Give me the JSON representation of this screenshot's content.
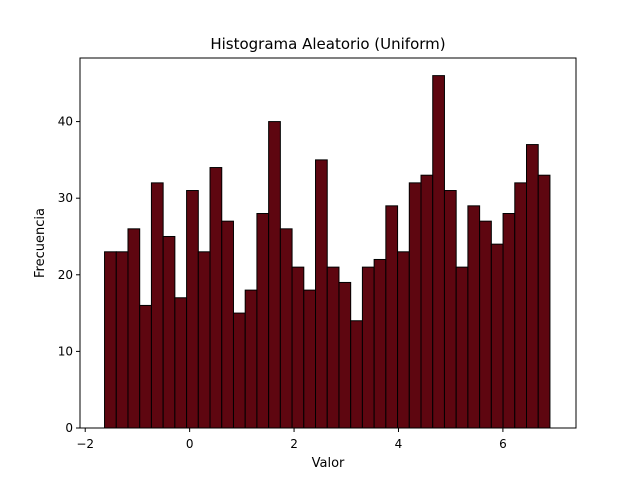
{
  "chart_data": {
    "type": "bar",
    "subtype": "histogram",
    "title": "Histograma Aleatorio (Uniform)",
    "xlabel": "Valor",
    "ylabel": "Frecuencia",
    "xlim": [
      -2.1,
      7.4
    ],
    "ylim": [
      0,
      48.3
    ],
    "xticks": [
      -2,
      0,
      2,
      4,
      6
    ],
    "yticks": [
      0,
      10,
      20,
      30,
      40
    ],
    "bin_start": -1.63,
    "bin_width": 0.2245,
    "values": [
      23,
      23,
      26,
      16,
      32,
      25,
      17,
      31,
      23,
      34,
      27,
      15,
      18,
      28,
      40,
      26,
      21,
      18,
      35,
      21,
      19,
      14,
      21,
      22,
      29,
      23,
      32,
      33,
      46,
      31,
      21,
      29,
      27,
      24,
      28,
      32,
      37,
      33
    ],
    "bar_color": "#5e0610",
    "edge_color": "#000000",
    "grid": false,
    "legend": "none"
  }
}
